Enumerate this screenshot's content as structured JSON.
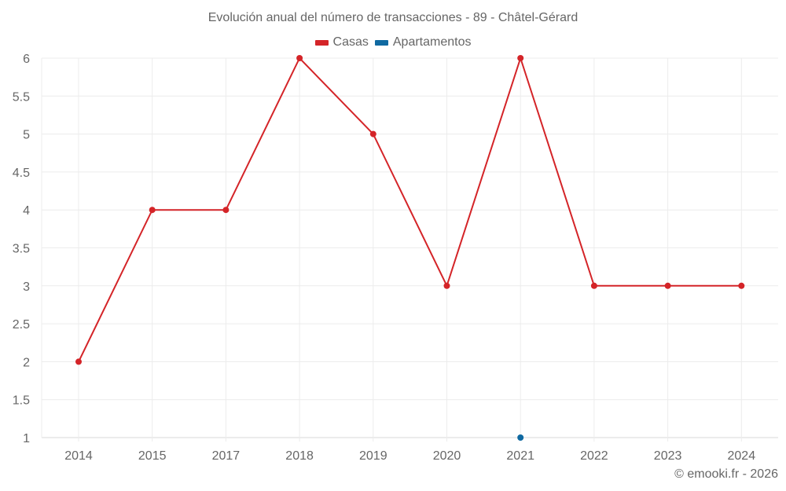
{
  "header": {
    "title": "Evolución anual del número de transacciones - 89 - Châtel-Gérard"
  },
  "legend": [
    {
      "label": "Casas",
      "color": "#d42428"
    },
    {
      "label": "Apartamentos",
      "color": "#0f69a1"
    }
  ],
  "footer": {
    "credit": "© emooki.fr - 2026"
  },
  "chart_data": {
    "type": "line",
    "title": "Evolución anual del número de transacciones - 89 - Châtel-Gérard",
    "xlabel": "",
    "ylabel": "",
    "categories": [
      "2014",
      "2015",
      "2017",
      "2018",
      "2019",
      "2020",
      "2021",
      "2022",
      "2023",
      "2024"
    ],
    "series": [
      {
        "name": "Casas",
        "color": "#d42428",
        "values": [
          2,
          4,
          4,
          6,
          5,
          3,
          6,
          3,
          3,
          3
        ]
      },
      {
        "name": "Apartamentos",
        "color": "#0f69a1",
        "values": [
          null,
          null,
          null,
          null,
          null,
          null,
          1,
          null,
          null,
          null
        ]
      }
    ],
    "yticks": [
      "1",
      "1.5",
      "2",
      "2.5",
      "3",
      "3.5",
      "4",
      "4.5",
      "5",
      "5.5",
      "6"
    ],
    "ylim": [
      1,
      6
    ],
    "grid": true,
    "legend_position": "top"
  }
}
